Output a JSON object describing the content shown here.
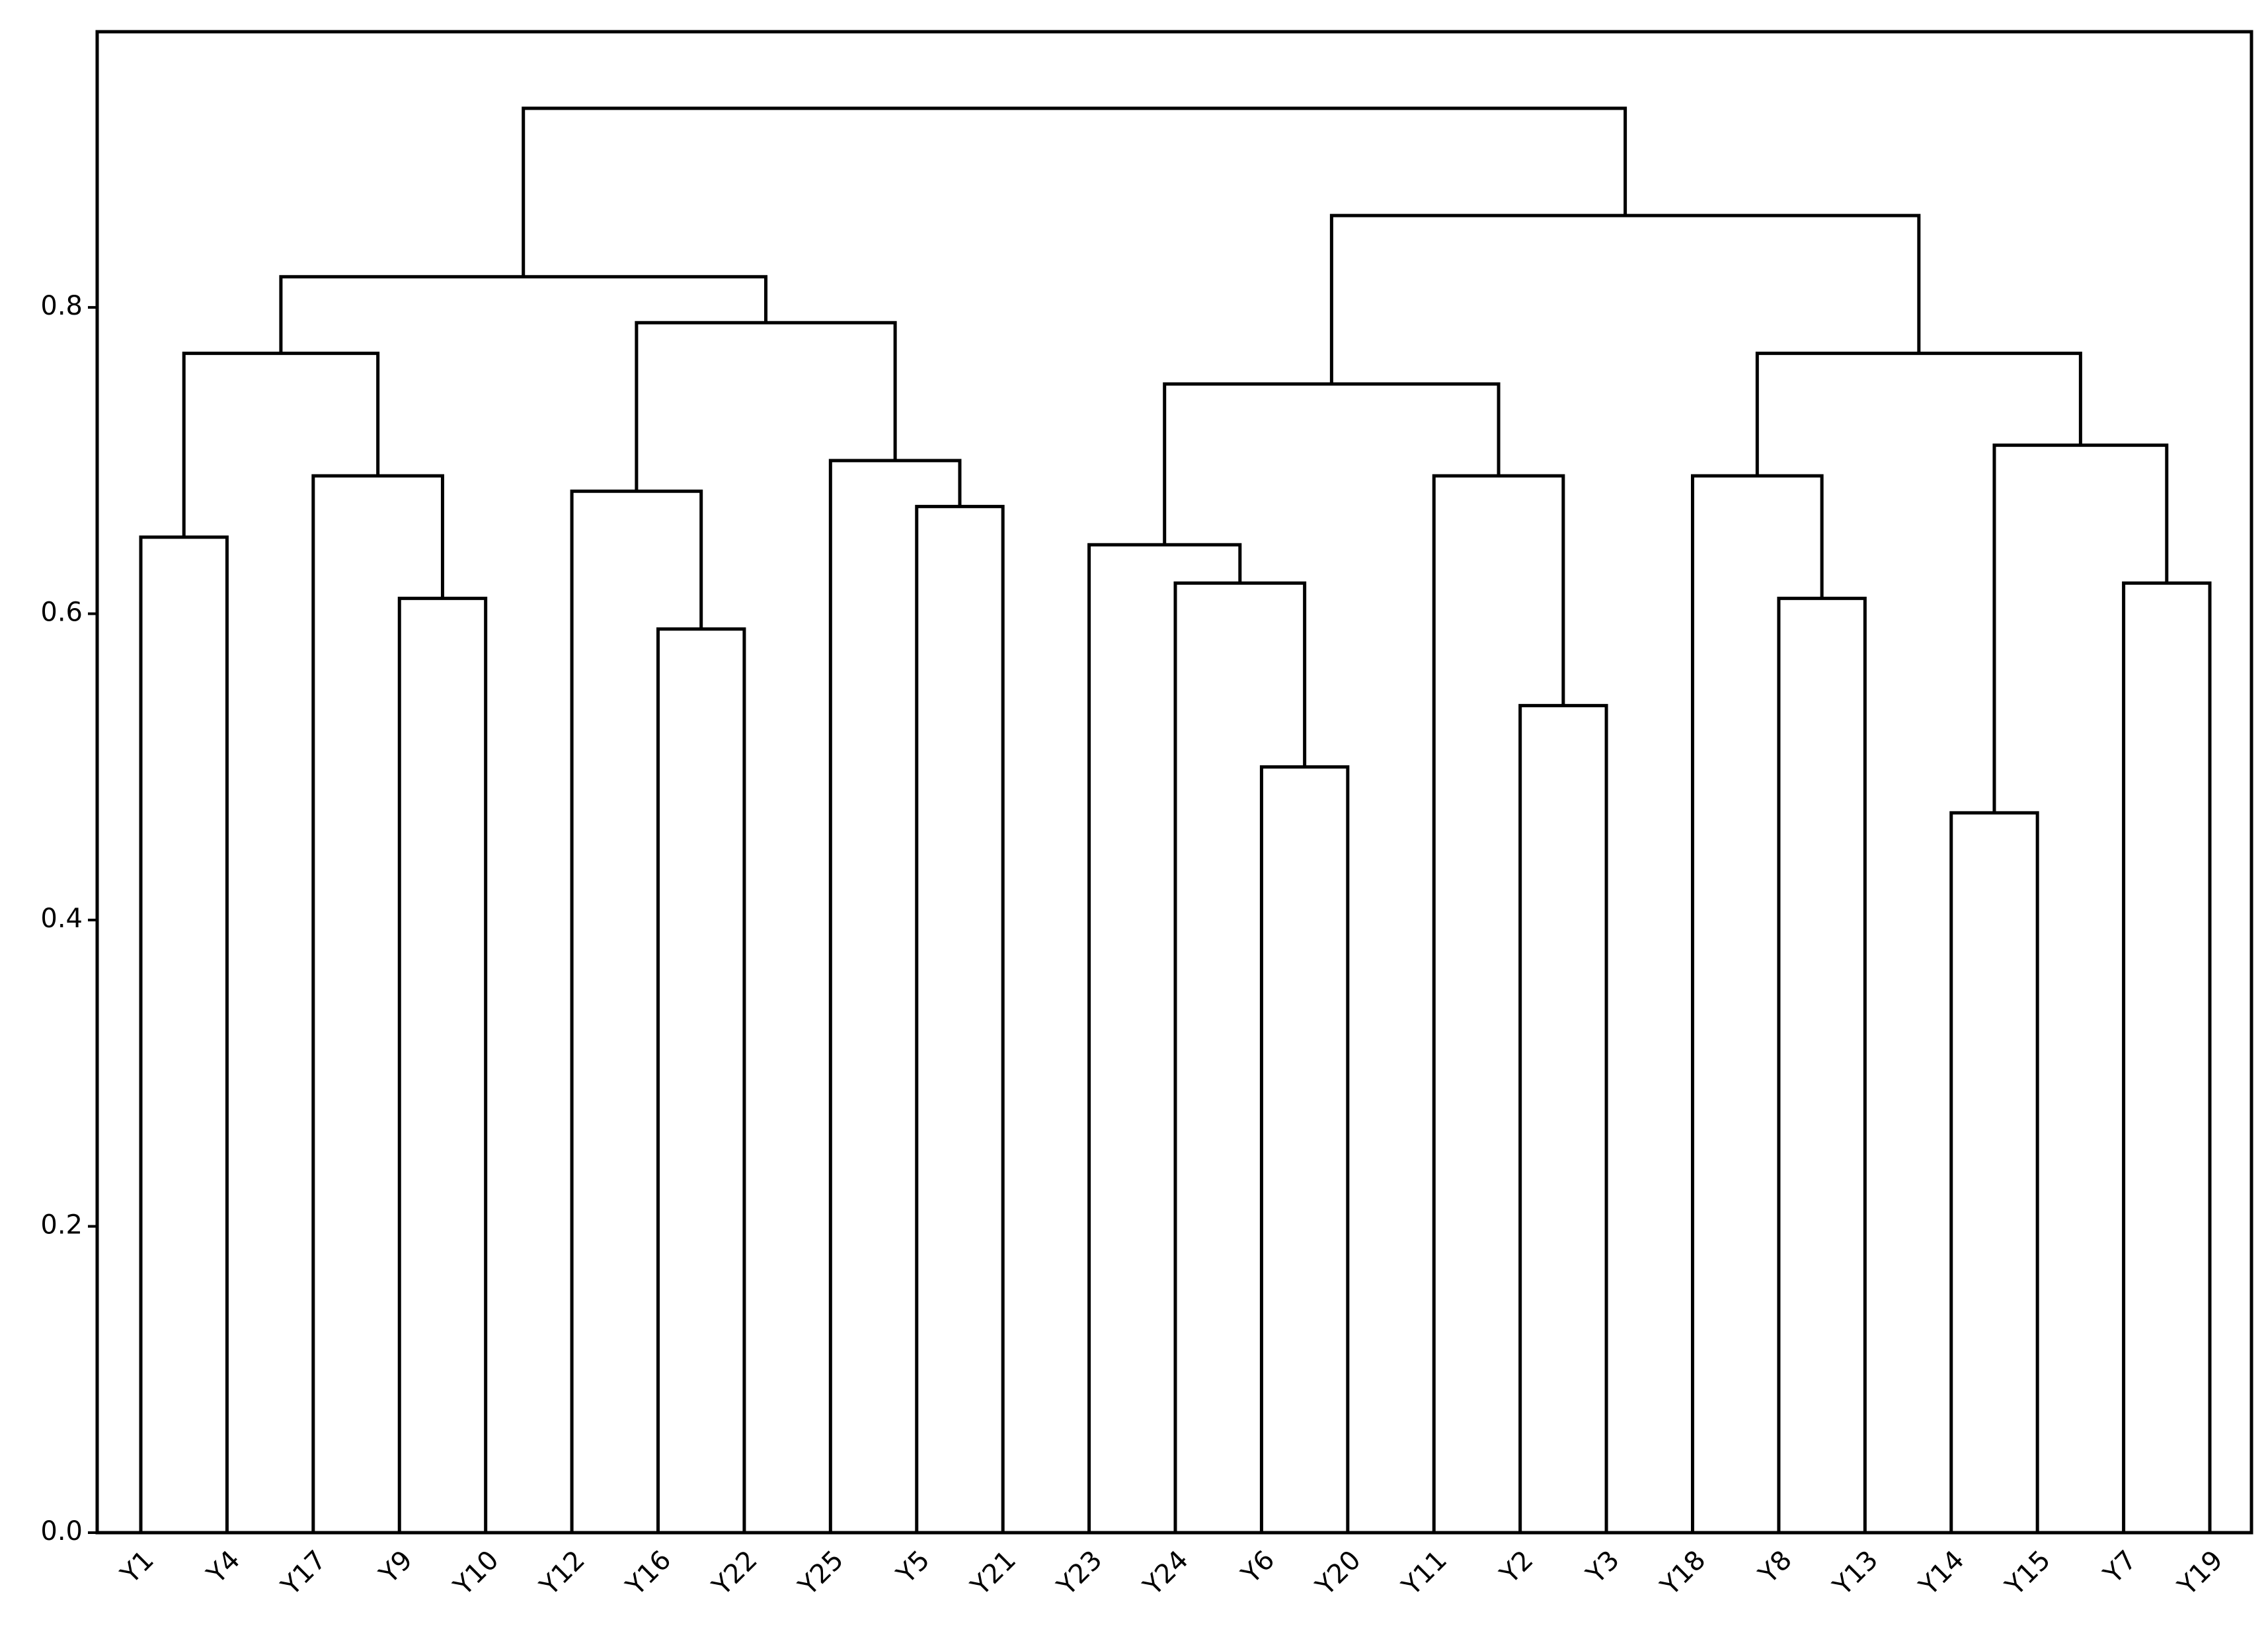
{
  "chart_data": {
    "type": "dendrogram",
    "ylim": [
      0,
      0.98
    ],
    "yticks": [
      {
        "value": 0,
        "label": "0.0"
      },
      0.2,
      0.4,
      0.6,
      0.8
    ],
    "color": "#000000",
    "tree": {
      "height": 0.93,
      "children": [
        {
          "height": 0.82,
          "children": [
            {
              "height": 0.77,
              "children": [
                {
                  "height": 0.65,
                  "children": [
                    "Y1",
                    "Y4"
                  ]
                },
                {
                  "height": 0.69,
                  "children": [
                    "Y17",
                    {
                      "height": 0.61,
                      "children": [
                        "Y9",
                        "Y10"
                      ]
                    }
                  ]
                }
              ]
            },
            {
              "height": 0.79,
              "children": [
                {
                  "height": 0.68,
                  "children": [
                    "Y12",
                    {
                      "height": 0.59,
                      "children": [
                        "Y16",
                        "Y22"
                      ]
                    }
                  ]
                },
                {
                  "height": 0.7,
                  "children": [
                    "Y25",
                    {
                      "height": 0.67,
                      "children": [
                        "Y5",
                        "Y21"
                      ]
                    }
                  ]
                }
              ]
            }
          ]
        },
        {
          "height": 0.86,
          "children": [
            {
              "height": 0.75,
              "children": [
                {
                  "height": 0.645,
                  "children": [
                    "Y23",
                    {
                      "height": 0.62,
                      "children": [
                        "Y24",
                        {
                          "height": 0.5,
                          "children": [
                            "Y6",
                            "Y20"
                          ]
                        }
                      ]
                    }
                  ]
                },
                {
                  "height": 0.69,
                  "children": [
                    "Y11",
                    {
                      "height": 0.54,
                      "children": [
                        "Y2",
                        "Y3"
                      ]
                    }
                  ]
                }
              ]
            },
            {
              "height": 0.77,
              "children": [
                {
                  "height": 0.69,
                  "children": [
                    "Y18",
                    {
                      "height": 0.61,
                      "children": [
                        "Y8",
                        "Y13"
                      ]
                    }
                  ]
                },
                {
                  "height": 0.71,
                  "children": [
                    {
                      "height": 0.47,
                      "children": [
                        "Y14",
                        "Y15"
                      ]
                    },
                    {
                      "height": 0.62,
                      "children": [
                        "Y7",
                        "Y19"
                      ]
                    }
                  ]
                }
              ]
            }
          ]
        }
      ]
    }
  }
}
